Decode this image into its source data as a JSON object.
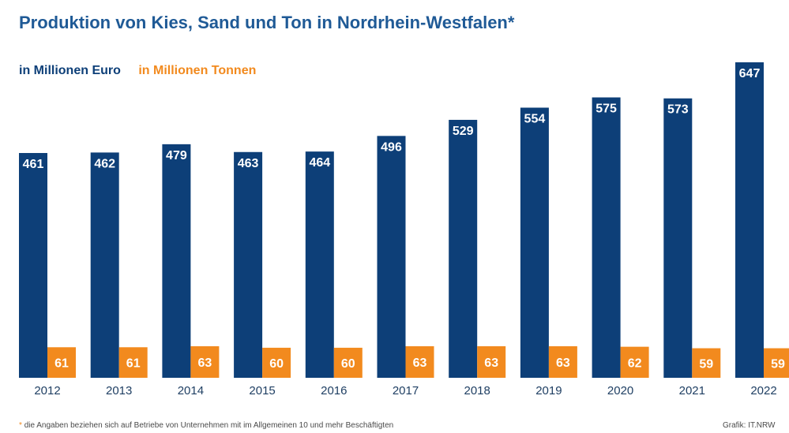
{
  "chart_data": {
    "type": "bar",
    "title": "Produktion von Kies, Sand und Ton in Nordrhein-Westfalen*",
    "categories": [
      "2012",
      "2013",
      "2014",
      "2015",
      "2016",
      "2017",
      "2018",
      "2019",
      "2020",
      "2021",
      "2022"
    ],
    "series": [
      {
        "name": "in Millionen Euro",
        "color": "#0d3f78",
        "values": [
          461,
          462,
          479,
          463,
          464,
          496,
          529,
          554,
          575,
          573,
          647
        ]
      },
      {
        "name": "in Millionen Tonnen",
        "color": "#f28a1e",
        "values": [
          61,
          61,
          63,
          60,
          60,
          63,
          63,
          63,
          62,
          59,
          59
        ]
      }
    ],
    "grid": false,
    "legend_position": "top-left",
    "footnote_marker": "*",
    "footnote": "die Angaben beziehen sich auf Betriebe von Unternehmen mit im Allgemeinen 10 und mehr Beschäftigten",
    "source": "Grafik: IT.NRW"
  }
}
